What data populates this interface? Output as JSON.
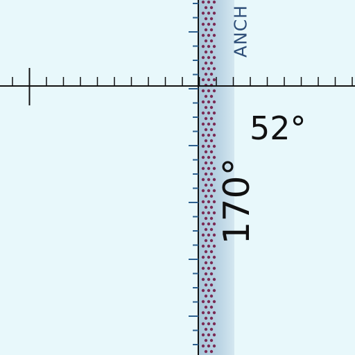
{
  "map": {
    "latitude_label": "52°",
    "longitude_label": "170°",
    "zone_label": "ANCH",
    "colors": {
      "water": "#e8f8fb",
      "boundary_band": "#a9c7da",
      "boundary_band_light": "#c9deeb",
      "dot_pattern": "#7a2b55",
      "graticule": "#111111",
      "tick_blue": "#2c5f8e",
      "label_text": "#111111",
      "zone_text": "#2f4f79"
    }
  }
}
